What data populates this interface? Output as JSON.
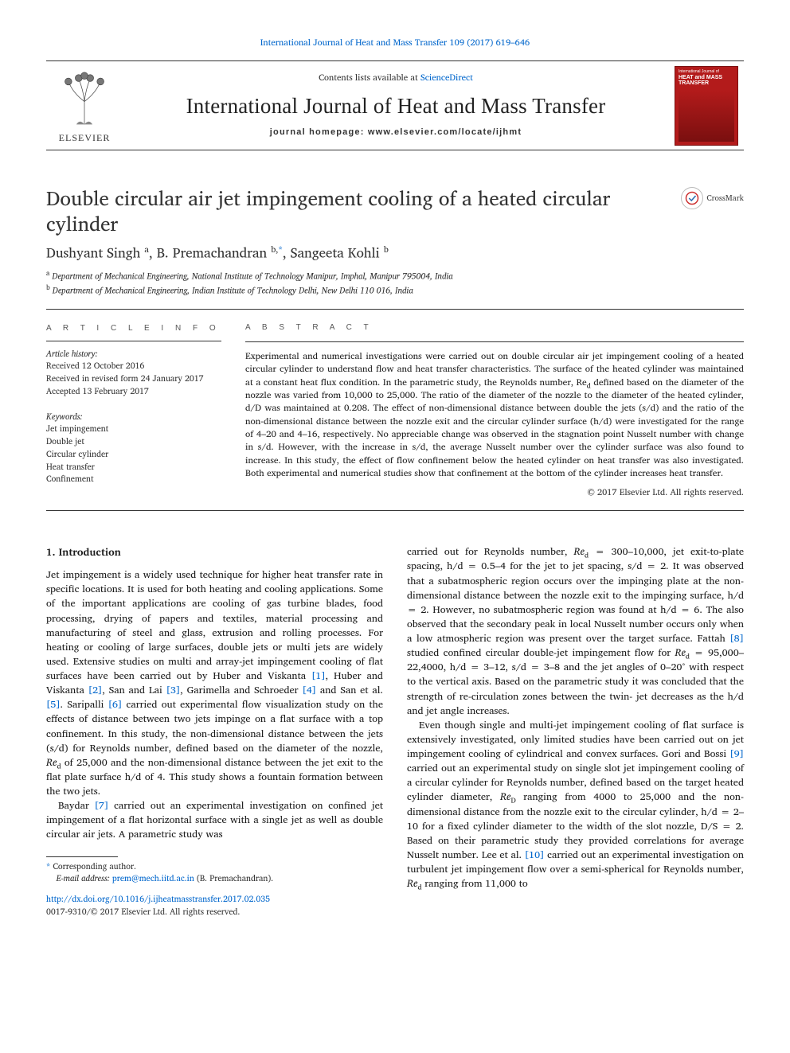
{
  "top_citation": {
    "journal": "International Journal of Heat and Mass Transfer",
    "volume": "109",
    "year": "2017",
    "pages": "619–646",
    "color": "#0066cc"
  },
  "masthead": {
    "contents_prefix": "Contents lists available at ",
    "contents_link": "ScienceDirect",
    "journal_name": "International Journal of Heat and Mass Transfer",
    "homepage_label": "journal homepage: www.elsevier.com/locate/ijhmt",
    "publisher": "ELSEVIER",
    "cover": {
      "top": "International Journal of",
      "title_html": "HEAT and MASS TRANSFER",
      "bg": "#b31b1b"
    }
  },
  "crossmark_label": "CrossMark",
  "title": "Double circular air jet impingement cooling of a heated circular cylinder",
  "authors_html": "Dushyant Singh <span class='sup'>a</span>, B. Premachandran <span class='sup'>b,</span><span class='sup link-blue'>*</span>, Sangeeta Kohli <span class='sup'>b</span>",
  "affiliations": [
    {
      "sup": "a",
      "text": "Department of Mechanical Engineering, National Institute of Technology Manipur, Imphal, Manipur 795004, India"
    },
    {
      "sup": "b",
      "text": "Department of Mechanical Engineering, Indian Institute of Technology Delhi, New Delhi 110 016, India"
    }
  ],
  "info": {
    "head": "A R T I C L E   I N F O",
    "history_label": "Article history:",
    "history": [
      "Received 12 October 2016",
      "Received in revised form 24 January 2017",
      "Accepted 13 February 2017"
    ],
    "keywords_label": "Keywords:",
    "keywords": [
      "Jet impingement",
      "Double jet",
      "Circular cylinder",
      "Heat transfer",
      "Confinement"
    ]
  },
  "abstract": {
    "head": "A B S T R A C T",
    "text": "Experimental and numerical investigations were carried out on double circular air jet impingement cooling of a heated circular cylinder to understand flow and heat transfer characteristics. The surface of the heated cylinder was maintained at a constant heat flux condition. In the parametric study, the Reynolds number, Re<sub>d</sub> defined based on the diameter of the nozzle was varied from 10,000 to 25,000. The ratio of the diameter of the nozzle to the diameter of the heated cylinder, d/D was maintained at 0.208. The effect of non-dimensional distance between double the jets (s/d) and the ratio of the non-dimensional distance between the nozzle exit and the circular cylinder surface (h/d) were investigated for the range of 4–20 and 4–16, respectively. No appreciable change was observed in the stagnation point Nusselt number with change in s/d. However, with the increase in s/d, the average Nusselt number over the cylinder surface was also found to increase. In this study, the effect of flow confinement below the heated cylinder on heat transfer was also investigated. Both experimental and numerical studies show that confinement at the bottom of the cylinder increases heat transfer.",
    "copyright": "© 2017 Elsevier Ltd. All rights reserved."
  },
  "section1": {
    "head": "1. Introduction",
    "p1": "Jet impingement is a widely used technique for higher heat transfer rate in specific locations. It is used for both heating and cooling applications. Some of the important applications are cooling of gas turbine blades, food processing, drying of papers and textiles, material processing and manufacturing of steel and glass, extrusion and rolling processes. For heating or cooling of large surfaces, double jets or multi jets are widely used. Extensive studies on multi and array-jet impingement cooling of flat surfaces have been carried out by Huber and Viskanta <span class='ref'>[1]</span>, Huber and Viskanta <span class='ref'>[2]</span>, San and Lai <span class='ref'>[3]</span>, Garimella and Schroeder <span class='ref'>[4]</span> and San et al. <span class='ref'>[5]</span>. Saripalli <span class='ref'>[6]</span> carried out experimental flow visualization study on the effects of distance between two jets impinge on a flat surface with a top confinement. In this study, the non-dimensional distance between the jets (s/d) for Reynolds number, defined based on the diameter of the nozzle, <span class='ital'>Re</span><sub>d</sub> of 25,000 and the non-dimensional distance between the jet exit to the flat plate surface h/d of 4. This study shows a fountain formation between the two jets.",
    "p2": "Baydar <span class='ref'>[7]</span> carried out an experimental investigation on confined jet impingement of a flat horizontal surface with a single jet as well as double circular air jets. A parametric study was",
    "p3": "carried out for Reynolds number, <span class='ital'>Re</span><sub>d</sub> = 300–10,000, jet exit-to-plate spacing, h/d = 0.5–4 for the jet to jet spacing, s/d = 2. It was observed that a subatmospheric region occurs over the impinging plate at the non-dimensional distance between the nozzle exit to the impinging surface, h/d = 2. However, no subatmospheric region was found at h/d = 6. The also observed that the secondary peak in local Nusselt number occurs only when a low atmospheric region was present over the target surface. Fattah <span class='ref'>[8]</span> studied confined circular double-jet impingement flow for <span class='ital'>Re</span><sub>d</sub> = 95,000–22,4000, h/d = 3–12, s/d = 3–8 and the jet angles of 0–20° with respect to the vertical axis. Based on the parametric study it was concluded that the strength of re-circulation zones between the twin- jet decreases as the h/d and jet angle increases.",
    "p4": "Even though single and multi-jet impingement cooling of flat surface is extensively investigated, only limited studies have been carried out on jet impingement cooling of cylindrical and convex surfaces. Gori and Bossi <span class='ref'>[9]</span> carried out an experimental study on single slot jet impingement cooling of a circular cylinder for Reynolds number, defined based on the target heated cylinder diameter, <span class='ital'>Re</span><sub>D</sub> ranging from 4000 to 25,000 and the non-dimensional distance from the nozzle exit to the circular cylinder, h/d = 2–10 for a fixed cylinder diameter to the width of the slot nozzle, D/S = 2. Based on their parametric study they provided correlations for average Nusselt number. Lee et al. <span class='ref'>[10]</span> carried out an experimental investigation on turbulent jet impingement flow over a semi-spherical for Reynolds number, <span class='ital'>Re</span><sub>d</sub> ranging from 11,000 to"
  },
  "footnote": {
    "corr": "Corresponding author.",
    "email_label": "E-mail address:",
    "email": "prem@mech.iitd.ac.in",
    "email_who": "(B. Premachandran)."
  },
  "doi": {
    "url": "http://dx.doi.org/10.1016/j.ijheatmasstransfer.2017.02.035",
    "issn": "0017-9310/© 2017 Elsevier Ltd. All rights reserved."
  },
  "colors": {
    "link": "#0066cc",
    "rule": "#333333",
    "cover_bg": "#b31b1b",
    "text": "#1a1a1a"
  },
  "typography": {
    "body_pt": 12.5,
    "title_pt": 25,
    "journal_pt": 27,
    "abstract_pt": 11.5,
    "info_pt": 10.5
  }
}
